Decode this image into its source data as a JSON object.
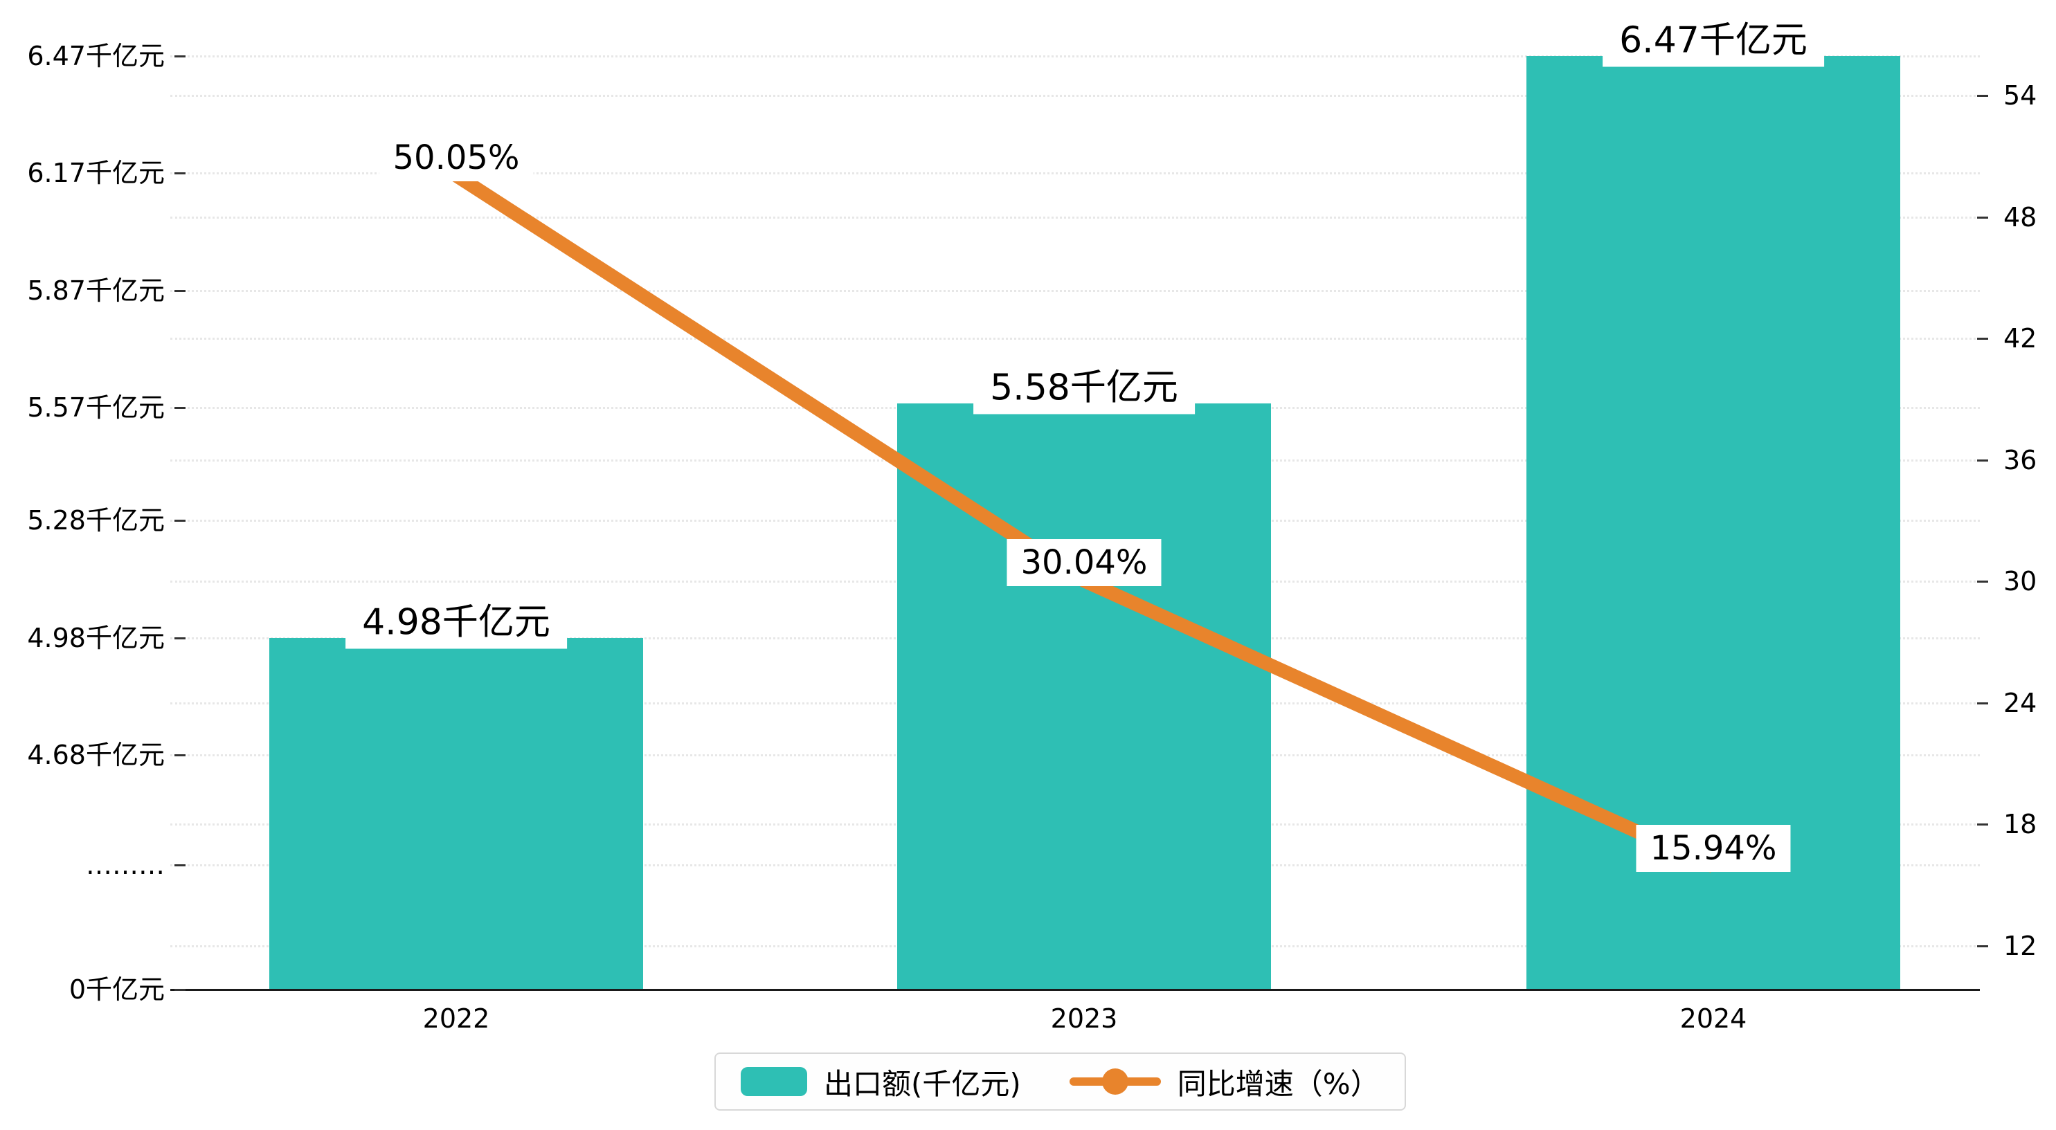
{
  "chart_data": {
    "type": "bar+line",
    "categories": [
      "2022",
      "2023",
      "2024"
    ],
    "series": [
      {
        "name": "出口额(千亿元)",
        "type": "bar",
        "axis": "left",
        "values": [
          4.98,
          5.58,
          6.47
        ],
        "value_labels": [
          "4.98千亿元",
          "5.58千亿元",
          "6.47千亿元"
        ]
      },
      {
        "name": "同比增速（%）",
        "type": "line",
        "axis": "right",
        "values": [
          50.05,
          30.04,
          15.94
        ],
        "value_labels": [
          "50.05%",
          "30.04%",
          "15.94%"
        ]
      }
    ],
    "left_axis": {
      "axis_break": true,
      "ticks": [
        {
          "label": "6.47千亿元",
          "value": 6.47
        },
        {
          "label": "6.17千亿元",
          "value": 6.17
        },
        {
          "label": "5.87千亿元",
          "value": 5.87
        },
        {
          "label": "5.57千亿元",
          "value": 5.57
        },
        {
          "label": "5.28千亿元",
          "value": 5.28
        },
        {
          "label": "4.98千亿元",
          "value": 4.98
        },
        {
          "label": "4.68千亿元",
          "value": 4.68
        },
        {
          "label": "………",
          "value": null
        },
        {
          "label": "0千亿元",
          "value": 0
        }
      ]
    },
    "right_axis": {
      "ticks": [
        54,
        48,
        42,
        36,
        30,
        24,
        18,
        12
      ],
      "range": [
        12,
        54
      ]
    },
    "legend": {
      "items": [
        {
          "label": "出口额(千亿元)",
          "marker": "bar"
        },
        {
          "label": "同比增速（%）",
          "marker": "line"
        }
      ]
    },
    "colors": {
      "bar": "#2ebfb4",
      "line": "#e8842c",
      "grid": "#e7e7e7",
      "axis": "#1a1a1a",
      "text": "#000000",
      "label_bg": "#ffffff"
    },
    "grid_style": "dotted horizontal"
  }
}
